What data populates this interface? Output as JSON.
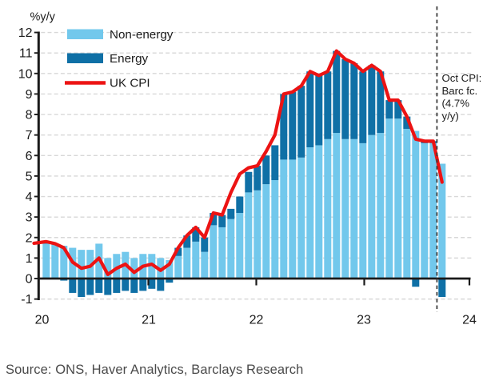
{
  "chart": {
    "y_axis_unit_label": "%y/y",
    "y_ticks": [
      -1,
      0,
      1,
      2,
      3,
      4,
      5,
      6,
      7,
      8,
      9,
      10,
      11,
      12
    ],
    "x_tick_labels": [
      "20",
      "21",
      "22",
      "23",
      "24"
    ],
    "legend": [
      {
        "label": "Non-energy",
        "swatch": "bar",
        "color": "#72C8EC"
      },
      {
        "label": "Energy",
        "swatch": "bar",
        "color": "#0F70A6"
      },
      {
        "label": "UK CPI",
        "swatch": "line",
        "color": "#EC1313"
      }
    ],
    "annotation_lines": [
      "Oct CPI:",
      "Barc fc.",
      "(4.7%",
      "y/y)"
    ],
    "colors": {
      "non_energy": "#72C8EC",
      "energy": "#0F70A6",
      "cpi_line": "#EC1313",
      "gridline": "#D8D8D8",
      "axis": "#1A1A1A",
      "divider": "#3C3C3C",
      "text": "#1A1A1A"
    }
  },
  "source_line": "Source: ONS, Haver Analytics, Barclays Research",
  "chart_data": {
    "type": "stacked-bar+line",
    "title": "",
    "ylabel": "%y/y",
    "ylim": [
      -1,
      12
    ],
    "grid": "horizontal-dashed",
    "legend_position": "top-left-inside",
    "months": [
      "2020-01",
      "2020-02",
      "2020-03",
      "2020-04",
      "2020-05",
      "2020-06",
      "2020-07",
      "2020-08",
      "2020-09",
      "2020-10",
      "2020-11",
      "2020-12",
      "2021-01",
      "2021-02",
      "2021-03",
      "2021-04",
      "2021-05",
      "2021-06",
      "2021-07",
      "2021-08",
      "2021-09",
      "2021-10",
      "2021-11",
      "2021-12",
      "2022-01",
      "2022-02",
      "2022-03",
      "2022-04",
      "2022-05",
      "2022-06",
      "2022-07",
      "2022-08",
      "2022-09",
      "2022-10",
      "2022-11",
      "2022-12",
      "2023-01",
      "2023-02",
      "2023-03",
      "2023-04",
      "2023-05",
      "2023-06",
      "2023-07",
      "2023-08",
      "2023-09",
      "2023-10"
    ],
    "series": [
      {
        "name": "Non-energy",
        "type": "bar",
        "stacked": true,
        "color": "#72C8EC",
        "values": [
          1.7,
          1.7,
          1.6,
          1.5,
          1.4,
          1.4,
          1.7,
          1.0,
          1.2,
          1.3,
          1.0,
          1.2,
          1.2,
          1.0,
          0.9,
          1.1,
          1.5,
          1.8,
          1.3,
          2.6,
          2.5,
          2.9,
          3.2,
          4.2,
          4.3,
          4.6,
          4.8,
          5.8,
          5.8,
          5.9,
          6.4,
          6.5,
          6.8,
          7.1,
          6.8,
          6.8,
          6.6,
          7.0,
          7.1,
          7.8,
          7.8,
          7.3,
          7.2,
          6.6,
          6.6,
          5.6
        ]
      },
      {
        "name": "Energy",
        "type": "bar",
        "stacked": true,
        "color": "#0F70A6",
        "values": [
          0.1,
          0.0,
          -0.1,
          -0.7,
          -0.9,
          -0.8,
          -0.7,
          -0.8,
          -0.7,
          -0.6,
          -0.7,
          -0.6,
          -0.5,
          -0.6,
          -0.2,
          0.4,
          0.6,
          0.7,
          0.7,
          0.6,
          0.6,
          0.5,
          0.8,
          1.0,
          1.2,
          1.4,
          1.7,
          3.2,
          3.3,
          3.5,
          3.7,
          3.4,
          3.3,
          4.0,
          3.9,
          3.7,
          3.5,
          3.4,
          3.0,
          0.9,
          0.9,
          0.6,
          -0.4,
          0.1,
          0.1,
          -0.9
        ]
      },
      {
        "name": "UK CPI",
        "type": "line",
        "color": "#EC1313",
        "values": [
          1.8,
          1.7,
          1.5,
          0.8,
          0.5,
          0.6,
          1.0,
          0.2,
          0.5,
          0.7,
          0.3,
          0.6,
          0.7,
          0.4,
          0.7,
          1.5,
          2.1,
          2.5,
          2.0,
          3.2,
          3.1,
          4.2,
          5.1,
          5.4,
          5.5,
          6.2,
          7.0,
          9.0,
          9.1,
          9.4,
          10.1,
          9.9,
          10.1,
          11.1,
          10.7,
          10.5,
          10.1,
          10.4,
          10.1,
          8.7,
          8.7,
          7.9,
          6.8,
          6.7,
          6.7,
          4.7
        ]
      }
    ],
    "forecast": {
      "month": "2023-10",
      "label": "Oct CPI: Barc fc. (4.7% y/y)",
      "cpi_forecast_pct_yoy": 4.7
    },
    "x_year_ticks": [
      "20",
      "21",
      "22",
      "23",
      "24"
    ]
  }
}
